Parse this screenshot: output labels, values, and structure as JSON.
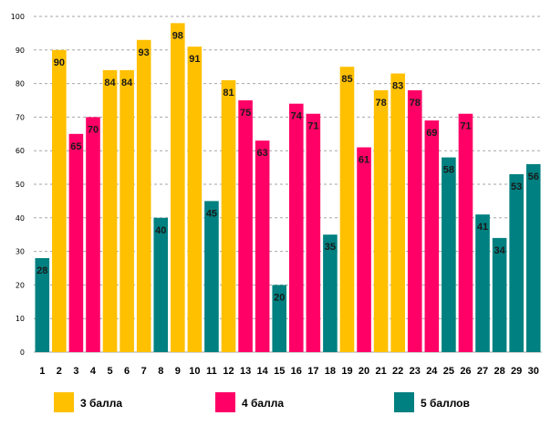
{
  "chart_data": {
    "type": "bar",
    "title": "",
    "xlabel": "",
    "ylabel": "",
    "ylim": [
      0,
      100
    ],
    "yticks": [
      "0",
      "10",
      "20",
      "30",
      "40",
      "50",
      "60",
      "70",
      "80",
      "90",
      "100"
    ],
    "grid": true,
    "categories": [
      "1",
      "2",
      "3",
      "4",
      "5",
      "6",
      "7",
      "8",
      "9",
      "10",
      "11",
      "12",
      "13",
      "14",
      "15",
      "16",
      "17",
      "18",
      "19",
      "20",
      "21",
      "22",
      "23",
      "24",
      "25",
      "26",
      "27",
      "28",
      "29",
      "30"
    ],
    "values": [
      28,
      90,
      65,
      70,
      84,
      84,
      93,
      40,
      98,
      91,
      45,
      81,
      75,
      63,
      20,
      74,
      71,
      35,
      85,
      61,
      78,
      83,
      78,
      69,
      58,
      71,
      41,
      34,
      53,
      56
    ],
    "groups": [
      2,
      0,
      1,
      1,
      0,
      0,
      0,
      2,
      0,
      0,
      2,
      0,
      1,
      1,
      2,
      1,
      1,
      2,
      0,
      1,
      0,
      0,
      1,
      1,
      2,
      1,
      2,
      2,
      2,
      2
    ],
    "legend": [
      {
        "label": "3 балла",
        "color": "#FFC000"
      },
      {
        "label": "4 балла",
        "color": "#FF0066"
      },
      {
        "label": "5 баллов",
        "color": "#008080"
      }
    ],
    "legend_position": "bottom"
  }
}
